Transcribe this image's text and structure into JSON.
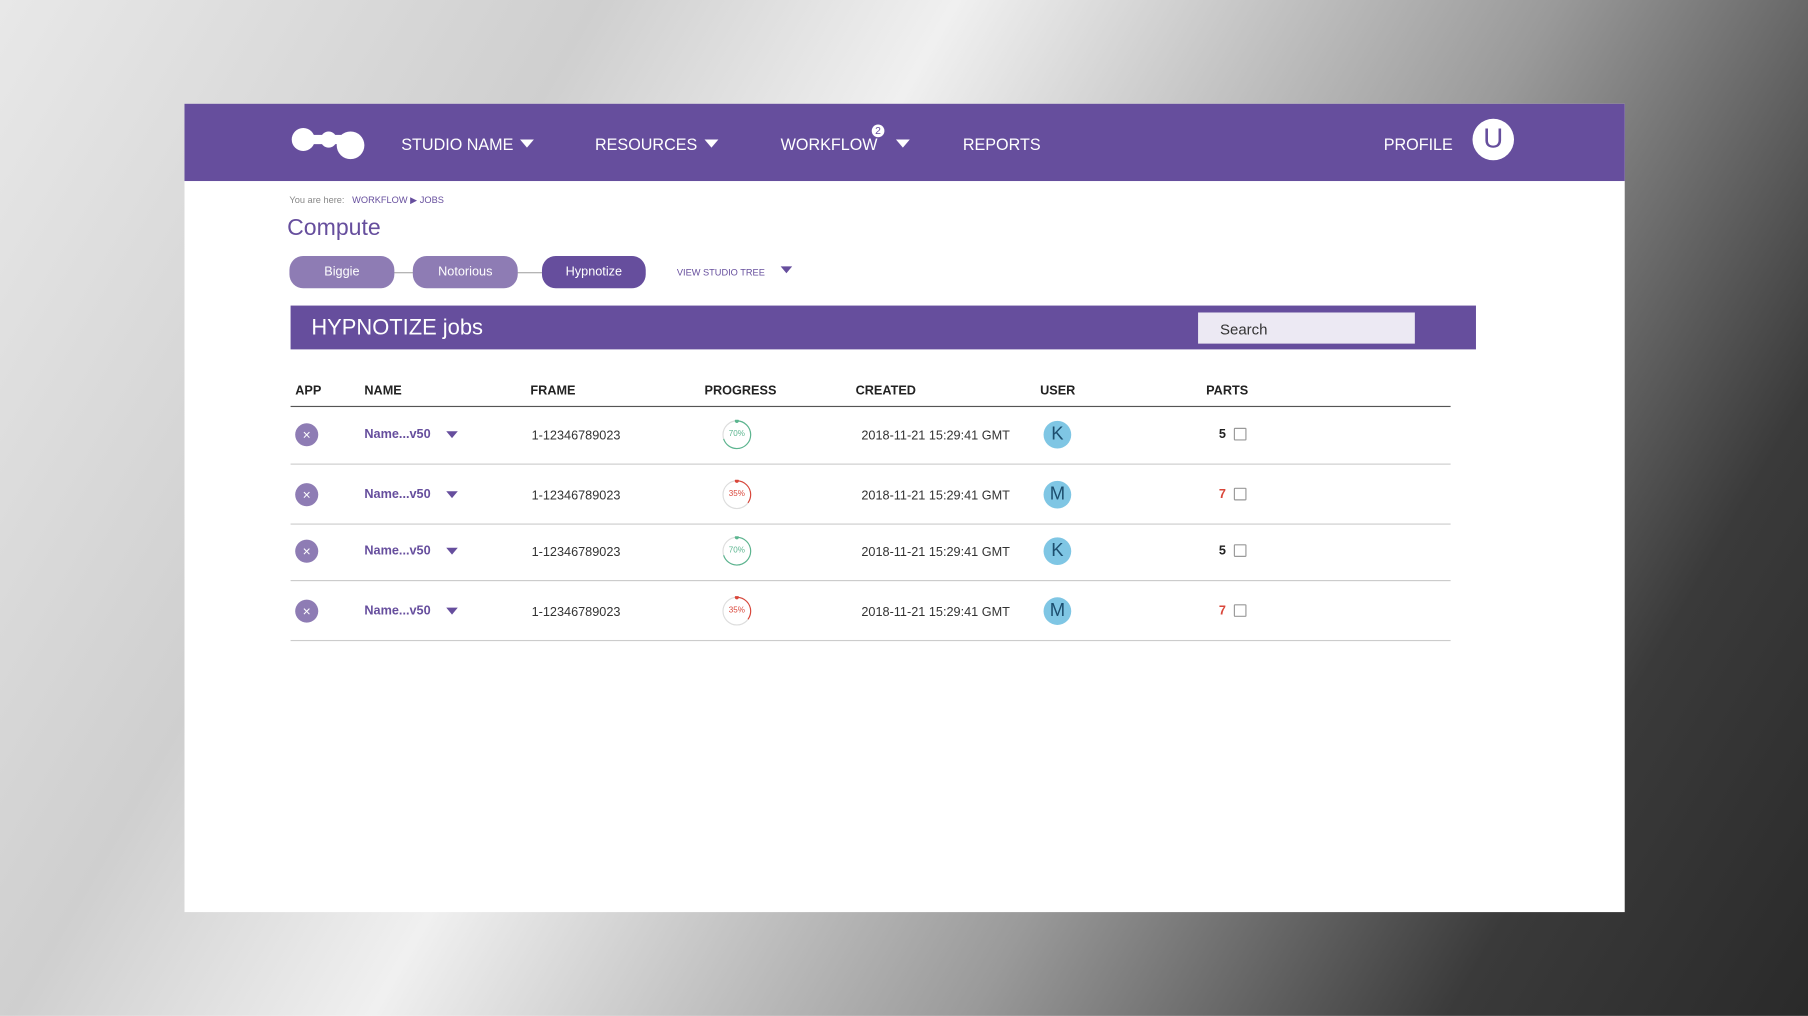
{
  "nav": {
    "items": [
      "STUDIO NAME",
      "RESOURCES",
      "WORKFLOW",
      "REPORTS"
    ],
    "workflow_badge": "2",
    "profile": "PROFILE",
    "avatar": "U"
  },
  "breadcrumb": {
    "prefix": "You are here:",
    "items": [
      "WORKFLOW",
      "JOBS"
    ]
  },
  "page_title": "Compute",
  "tabs": [
    "Biggie",
    "Notorious",
    "Hypnotize"
  ],
  "studio_tree": "VIEW STUDIO TREE",
  "jobs": {
    "title": "HYPNOTIZE jobs",
    "search": "Search",
    "columns": [
      "APP",
      "NAME",
      "FRAME",
      "PROGRESS",
      "CREATED",
      "USER",
      "PARTS"
    ],
    "rows": [
      {
        "name": "Name...v50",
        "frame": "1-12346789023",
        "progress": "70%",
        "progress_color": "#5bb58f",
        "created": "2018-11-21 15:29:41 GMT",
        "user": "K",
        "parts": "5",
        "parts_color": "#222222"
      },
      {
        "name": "Name...v50",
        "frame": "1-12346789023",
        "progress": "35%",
        "progress_color": "#d9463a",
        "created": "2018-11-21 15:29:41 GMT",
        "user": "M",
        "parts": "7",
        "parts_color": "#d9463a"
      },
      {
        "name": "Name...v50",
        "frame": "1-12346789023",
        "progress": "70%",
        "progress_color": "#5bb58f",
        "created": "2018-11-21 15:29:41 GMT",
        "user": "K",
        "parts": "5",
        "parts_color": "#222222"
      },
      {
        "name": "Name...v50",
        "frame": "1-12346789023",
        "progress": "35%",
        "progress_color": "#d9463a",
        "created": "2018-11-21 15:29:41 GMT",
        "user": "M",
        "parts": "7",
        "parts_color": "#d9463a"
      }
    ]
  }
}
